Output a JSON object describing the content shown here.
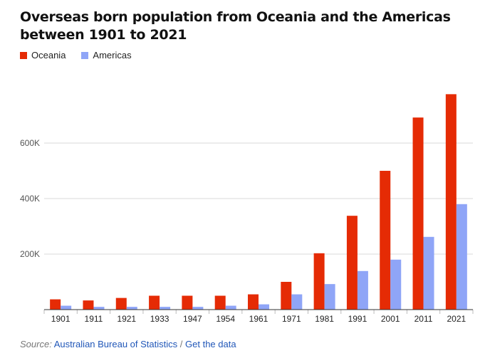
{
  "chart_data": {
    "type": "bar",
    "title": "Overseas born population from Oceania and the Americas between 1901 to 2021",
    "categories": [
      "1901",
      "1911",
      "1921",
      "1933",
      "1947",
      "1954",
      "1961",
      "1971",
      "1981",
      "1991",
      "2001",
      "2011",
      "2021"
    ],
    "series": [
      {
        "name": "Oceania",
        "color": "#e52b05",
        "values": [
          37000,
          33000,
          42000,
          50000,
          50000,
          50000,
          55000,
          100000,
          203000,
          338000,
          500000,
          692000,
          776000
        ]
      },
      {
        "name": "Americas",
        "color": "#8fa5f7",
        "values": [
          14000,
          10000,
          10000,
          10000,
          10000,
          14000,
          19000,
          55000,
          92000,
          139000,
          180000,
          262000,
          380000
        ]
      }
    ],
    "yticks": [
      "200K",
      "400K",
      "600K"
    ],
    "ytick_values": [
      200000,
      400000,
      600000
    ],
    "ylim": [
      0,
      800000
    ],
    "legend_position": "top-left",
    "grid": true
  },
  "source": {
    "label": "Source:",
    "publisher": "Australian Bureau of Statistics",
    "separator": "/",
    "data_link": "Get the data"
  }
}
